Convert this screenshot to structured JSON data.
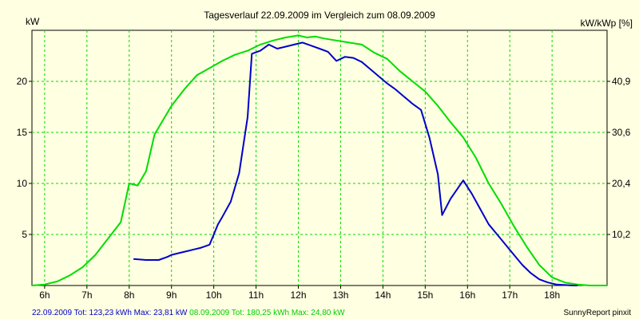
{
  "chart_data": {
    "type": "line",
    "title": "Tagesverlauf 22.09.2009 im Vergleich zum 08.09.2009",
    "ylabel_left": "kW",
    "ylabel_right": "kW/kWp [%]",
    "x_ticks": [
      "6h",
      "7h",
      "8h",
      "9h",
      "10h",
      "11h",
      "12h",
      "13h",
      "14h",
      "15h",
      "16h",
      "17h",
      "18h"
    ],
    "xlim": [
      5.7,
      19.3
    ],
    "ylim": [
      0,
      25
    ],
    "y_ticks_left": [
      5,
      10,
      15,
      20
    ],
    "y_ticks_right": [
      "10,2",
      "20,4",
      "30,6",
      "40,9"
    ],
    "grid": true,
    "series": [
      {
        "name": "22.09.2009",
        "color": "#0000cc",
        "x": [
          8.1,
          8.4,
          8.7,
          8.9,
          9.0,
          9.2,
          9.4,
          9.5,
          9.7,
          9.9,
          10.1,
          10.2,
          10.4,
          10.6,
          10.8,
          10.9,
          11.1,
          11.3,
          11.5,
          11.7,
          11.9,
          12.1,
          12.3,
          12.5,
          12.7,
          12.9,
          13.1,
          13.3,
          13.5,
          13.7,
          13.9,
          14.1,
          14.3,
          14.5,
          14.7,
          14.9,
          15.1,
          15.3,
          15.4,
          15.6,
          15.9,
          16.1,
          16.3,
          16.5,
          16.7,
          16.9,
          17.1,
          17.3,
          17.5,
          17.7,
          17.9,
          18.1,
          18.3,
          18.5,
          18.6
        ],
        "y": [
          2.6,
          2.5,
          2.5,
          2.8,
          3.0,
          3.2,
          3.4,
          3.5,
          3.7,
          4.0,
          6.0,
          6.7,
          8.2,
          11.0,
          16.5,
          22.7,
          23.0,
          23.6,
          23.2,
          23.4,
          23.6,
          23.8,
          23.5,
          23.2,
          22.9,
          22.0,
          22.4,
          22.3,
          21.9,
          21.2,
          20.5,
          19.8,
          19.2,
          18.5,
          17.8,
          17.2,
          14.5,
          10.9,
          6.9,
          8.5,
          10.3,
          9.0,
          7.5,
          6.0,
          5.0,
          4.0,
          3.0,
          2.0,
          1.2,
          0.6,
          0.3,
          0.1,
          0.05,
          0.0,
          0.0
        ],
        "total": "123,23 kWh",
        "max": "23,81 kW"
      },
      {
        "name": "08.09.2009",
        "color": "#00dd00",
        "x": [
          5.7,
          6.0,
          6.3,
          6.6,
          6.9,
          7.2,
          7.5,
          7.8,
          8.0,
          8.2,
          8.4,
          8.6,
          8.8,
          9.0,
          9.3,
          9.6,
          9.9,
          10.2,
          10.5,
          10.8,
          11.1,
          11.4,
          11.7,
          12.0,
          12.2,
          12.4,
          12.6,
          12.9,
          13.2,
          13.5,
          13.8,
          14.1,
          14.4,
          14.7,
          15.0,
          15.3,
          15.6,
          15.9,
          16.2,
          16.5,
          16.8,
          17.1,
          17.4,
          17.7,
          18.0,
          18.3,
          18.6,
          18.9,
          19.3
        ],
        "y": [
          0.0,
          0.1,
          0.4,
          1.0,
          1.8,
          3.0,
          4.6,
          6.2,
          10.0,
          9.8,
          11.2,
          14.8,
          16.2,
          17.6,
          19.2,
          20.6,
          21.3,
          22.0,
          22.6,
          23.0,
          23.6,
          24.0,
          24.3,
          24.5,
          24.3,
          24.4,
          24.2,
          24.0,
          23.8,
          23.6,
          22.8,
          22.2,
          21.0,
          20.0,
          19.0,
          17.6,
          16.0,
          14.5,
          12.5,
          10.0,
          8.0,
          5.8,
          3.8,
          2.0,
          0.8,
          0.3,
          0.1,
          0.0,
          0.0
        ],
        "total": "180,25 kWh",
        "max": "24,80 kW"
      }
    ]
  },
  "footer": {
    "series1_text": "22.09.2009 Tot: 123,23 kWh Max: 23,81 kW",
    "series2_text": "08.09.2009 Tot: 180,25 kWh Max: 24,80 kW"
  },
  "credit": "SunnyReport pinxit"
}
